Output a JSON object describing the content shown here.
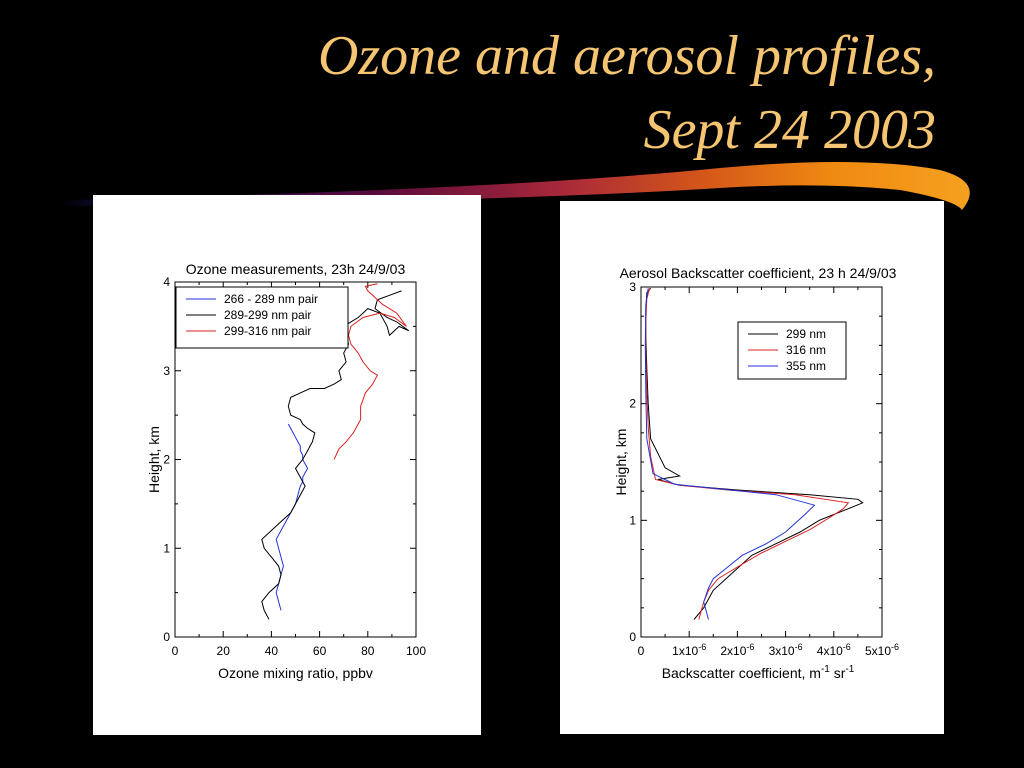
{
  "slide": {
    "title_line1": "Ozone and aerosol profiles,",
    "title_line2": "Sept 24 2003",
    "title_color": "#f5c571",
    "background": "#000000"
  },
  "chart_data": [
    {
      "type": "line",
      "title": "Ozone measurements, 23h 24/9/03",
      "xlabel": "Ozone mixing ratio, ppbv",
      "ylabel": "Height, km",
      "xlim": [
        0,
        100
      ],
      "ylim": [
        0,
        4
      ],
      "xticks": [
        0,
        20,
        40,
        60,
        80,
        100
      ],
      "yticks": [
        0,
        1,
        2,
        3,
        4
      ],
      "legend_position": "top-left",
      "series": [
        {
          "name": "266 - 289 nm pair",
          "color": "#2233dd",
          "x": [
            44,
            43,
            42,
            43,
            44,
            45,
            44,
            43,
            42,
            44,
            46,
            48,
            50,
            51,
            52,
            53,
            53,
            54,
            55,
            54,
            53,
            53,
            52,
            52,
            51,
            50,
            49,
            48,
            47
          ],
          "y": [
            0.3,
            0.4,
            0.5,
            0.6,
            0.7,
            0.8,
            0.9,
            1.0,
            1.1,
            1.2,
            1.3,
            1.4,
            1.5,
            1.6,
            1.7,
            1.75,
            1.8,
            1.85,
            1.9,
            1.95,
            2.0,
            2.05,
            2.1,
            2.15,
            2.2,
            2.25,
            2.3,
            2.35,
            2.4
          ]
        },
        {
          "name": "289-299 nm pair",
          "color": "#000000",
          "x": [
            39,
            37,
            36,
            39,
            43,
            44,
            43,
            40,
            37,
            36,
            40,
            44,
            48,
            50,
            52,
            54,
            52,
            50,
            53,
            55,
            57,
            58,
            55,
            53,
            52,
            48,
            47,
            48,
            52,
            56,
            62,
            66,
            69,
            68,
            71,
            70,
            72,
            71,
            70,
            73,
            76,
            78,
            80,
            85,
            88,
            89,
            93,
            97,
            92,
            88,
            83,
            84,
            89,
            94
          ],
          "y": [
            0.2,
            0.3,
            0.4,
            0.5,
            0.6,
            0.7,
            0.8,
            0.9,
            1.0,
            1.1,
            1.2,
            1.3,
            1.4,
            1.5,
            1.6,
            1.7,
            1.8,
            1.9,
            2.0,
            2.1,
            2.2,
            2.3,
            2.35,
            2.4,
            2.45,
            2.5,
            2.6,
            2.7,
            2.75,
            2.8,
            2.8,
            2.85,
            2.9,
            3.0,
            3.1,
            3.2,
            3.3,
            3.4,
            3.5,
            3.55,
            3.6,
            3.65,
            3.7,
            3.65,
            3.5,
            3.4,
            3.5,
            3.45,
            3.55,
            3.6,
            3.7,
            3.8,
            3.85,
            3.9
          ]
        },
        {
          "name": "299-316 nm pair",
          "color": "#dd2222",
          "x": [
            66,
            68,
            71,
            74,
            77,
            77,
            79,
            82,
            84,
            81,
            78,
            76,
            73,
            72,
            73,
            78,
            85,
            91,
            96,
            92,
            86,
            82,
            80,
            79,
            84
          ],
          "y": [
            2.0,
            2.12,
            2.2,
            2.3,
            2.45,
            2.6,
            2.75,
            2.85,
            2.95,
            3.0,
            3.1,
            3.2,
            3.3,
            3.4,
            3.5,
            3.6,
            3.65,
            3.6,
            3.5,
            3.65,
            3.75,
            3.85,
            3.9,
            3.95,
            3.98
          ]
        }
      ]
    },
    {
      "type": "line",
      "title": "Aerosol Backscatter coefficient, 23 h 24/9/03",
      "xlabel": "Backscatter coefficient, m",
      "xlabel_unit_exp1": "-1",
      "xlabel_sr": "sr",
      "xlabel_unit_exp2": "-1",
      "ylabel": "Height, km",
      "xlim": [
        0,
        5e-06
      ],
      "ylim": [
        0,
        3
      ],
      "xtick_values": [
        0,
        1e-06,
        2e-06,
        3e-06,
        4e-06,
        5e-06
      ],
      "xtick_labels": [
        {
          "base": "0",
          "exp": ""
        },
        {
          "base": "1x10",
          "exp": "-6"
        },
        {
          "base": "2x10",
          "exp": "-6"
        },
        {
          "base": "3x10",
          "exp": "-6"
        },
        {
          "base": "4x10",
          "exp": "-6"
        },
        {
          "base": "5x10",
          "exp": "-6"
        }
      ],
      "yticks": [
        0,
        1,
        2,
        3
      ],
      "legend_position": "top-right",
      "series": [
        {
          "name": "299 nm",
          "color": "#000000",
          "x": [
            1.1e-06,
            1.3e-06,
            1.5e-06,
            1.9e-06,
            2.3e-06,
            2.8e-06,
            3.3e-06,
            3.7e-06,
            4e-06,
            4.3e-06,
            4.6e-06,
            4.5e-06,
            3.5e-06,
            2e-06,
            8e-07,
            3.5e-07,
            8e-07,
            5e-07,
            2e-07,
            1.5e-07,
            1.2e-07,
            1e-07,
            1e-07,
            1.2e-07,
            2e-07
          ],
          "y": [
            0.15,
            0.25,
            0.4,
            0.55,
            0.7,
            0.8,
            0.9,
            1.0,
            1.05,
            1.1,
            1.15,
            1.18,
            1.22,
            1.26,
            1.3,
            1.35,
            1.38,
            1.45,
            1.7,
            2.0,
            2.3,
            2.6,
            2.8,
            2.95,
            2.99
          ]
        },
        {
          "name": "316 nm",
          "color": "#dd2222",
          "x": [
            1.2e-06,
            1.3e-06,
            1.4e-06,
            1.6e-06,
            2e-06,
            2.5e-06,
            3e-06,
            3.5e-06,
            3.9e-06,
            4.2e-06,
            4.3e-06,
            3.2e-06,
            1.8e-06,
            8e-07,
            3e-07,
            2e-07,
            1.5e-07,
            1.2e-07,
            1e-07,
            1e-07,
            1.2e-07,
            1.8e-07
          ],
          "y": [
            0.15,
            0.3,
            0.4,
            0.5,
            0.6,
            0.72,
            0.82,
            0.92,
            1.02,
            1.1,
            1.15,
            1.22,
            1.26,
            1.3,
            1.35,
            1.55,
            1.8,
            2.1,
            2.4,
            2.7,
            2.9,
            2.99
          ]
        },
        {
          "name": "355 nm",
          "color": "#2233dd",
          "x": [
            1.4e-06,
            1.3e-06,
            1.4e-06,
            1.5e-06,
            1.8e-06,
            2.1e-06,
            2.6e-06,
            3e-06,
            3.4e-06,
            3.6e-06,
            2.8e-06,
            1.6e-06,
            7e-07,
            2.5e-07,
            1.2e-07,
            1e-07,
            9e-08,
            1e-07,
            1.5e-07
          ],
          "y": [
            0.15,
            0.3,
            0.42,
            0.5,
            0.6,
            0.7,
            0.8,
            0.9,
            1.05,
            1.13,
            1.22,
            1.27,
            1.31,
            1.4,
            1.7,
            2.1,
            2.5,
            2.85,
            2.99
          ]
        }
      ]
    }
  ]
}
